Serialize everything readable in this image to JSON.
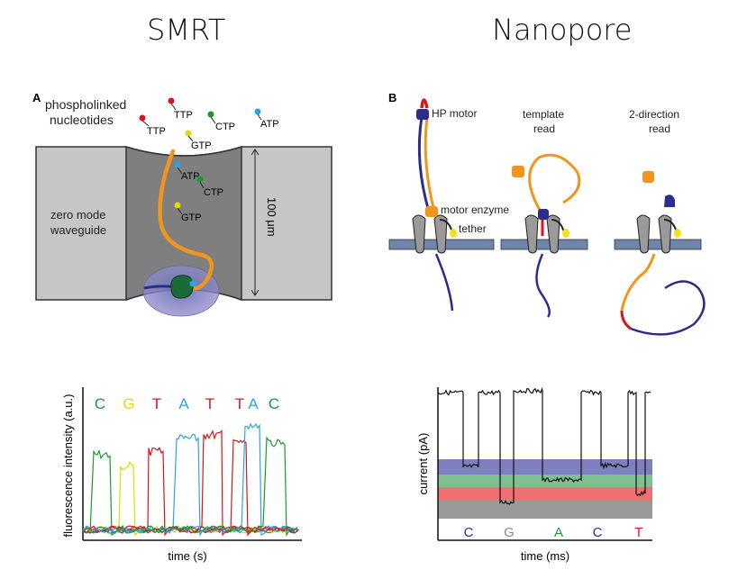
{
  "titles": {
    "left": "SMRT",
    "right": "Nanopore"
  },
  "panel_a": {
    "letter": "A",
    "heading_line1": "phospholinked",
    "heading_line2": "nucleotides",
    "top_labels": [
      "TTP",
      "TTP",
      "CTP",
      "ATP",
      "GTP"
    ],
    "well_labels": [
      "ATP",
      "CTP",
      "GTP"
    ],
    "waveguide_line1": "zero mode",
    "waveguide_line2": "waveguide",
    "depth_label": "100 μm"
  },
  "panel_b": {
    "letter": "B",
    "hp_motor": "HP motor",
    "motor_enzyme": "motor enzyme",
    "tether": "tether",
    "template_line1": "template",
    "template_line2": "read",
    "twodir_line1": "2-direction",
    "twodir_line2": "read"
  },
  "smrt_chart": {
    "ylabel": "fluorescence intensity (a.u.)",
    "xlabel": "time (s)",
    "bases": [
      {
        "text": "C",
        "color": "#1a9a2e"
      },
      {
        "text": "G",
        "color": "#e6d800"
      },
      {
        "text": "T",
        "color": "#d8161c"
      },
      {
        "text": "A",
        "color": "#2aa6dc"
      },
      {
        "text": "T",
        "color": "#d8161c"
      },
      {
        "text": "T",
        "color": "#d8161c"
      },
      {
        "text": "A",
        "color": "#2aa6dc"
      },
      {
        "text": "C",
        "color": "#1a9a2e"
      }
    ]
  },
  "nanopore_chart": {
    "ylabel": "current (pA)",
    "xlabel": "time (ms)",
    "bases": [
      {
        "text": "C",
        "color": "#2b2d8c"
      },
      {
        "text": "G",
        "color": "#8a8a8a"
      },
      {
        "text": "A",
        "color": "#1a9a2e"
      },
      {
        "text": "C",
        "color": "#2b2d8c"
      },
      {
        "text": "T",
        "color": "#d8161c"
      }
    ]
  },
  "colors": {
    "green": "#1a9a2e",
    "yellow": "#e6d800",
    "red": "#d8161c",
    "blue": "#2aa6dc",
    "navy": "#2b2d8c",
    "orange": "#f0961e",
    "gray": "#8a8a8a"
  }
}
